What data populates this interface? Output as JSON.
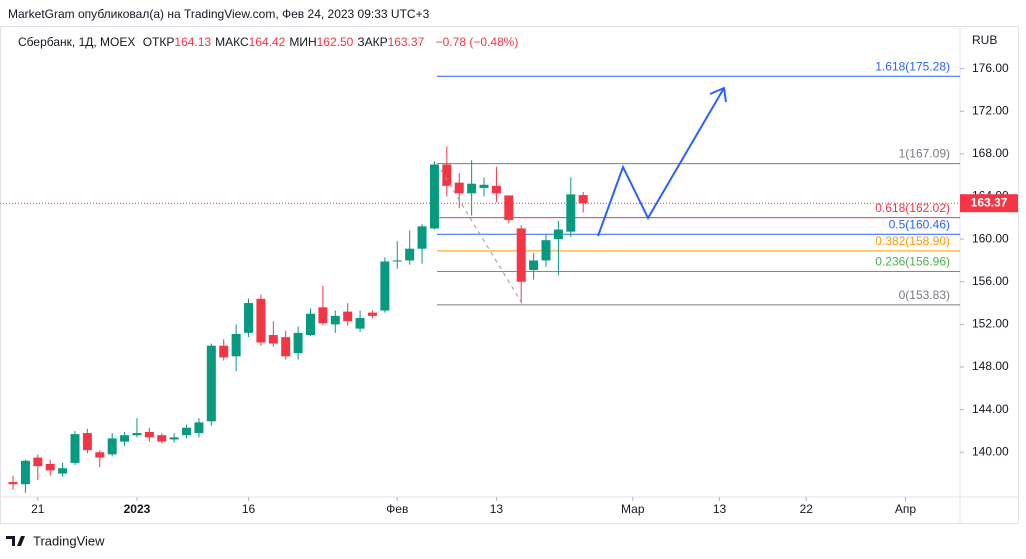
{
  "page": {
    "publisher": "MarketGram опубликовал(а) на TradingView.com, Фев 24, 2023 09:33 UTC+3",
    "symbol": "Сбербанк, 1Д, MOEX",
    "ohlc": [
      {
        "label": "ОТКР",
        "value": "164.13"
      },
      {
        "label": "МАКС",
        "value": "164.42"
      },
      {
        "label": "МИН",
        "value": "162.50"
      },
      {
        "label": "ЗАКР",
        "value": "163.37"
      }
    ],
    "change": "−0.78 (−0.48%)",
    "currency": "RUB",
    "brand": "TradingView"
  },
  "chart_data": {
    "type": "candlestick",
    "up_color": "#089981",
    "down_color": "#f23645",
    "open": [
      137.2,
      137.0,
      139.5,
      138.9,
      138.0,
      139.0,
      141.8,
      140.0,
      139.8,
      141.0,
      141.6,
      141.9,
      141.6,
      141.2,
      141.6,
      141.8,
      142.9,
      150.0,
      149.0,
      151.2,
      154.4,
      151.0,
      150.8,
      149.3,
      151.0,
      153.6,
      152.0,
      153.2,
      151.6,
      153.1,
      153.3,
      157.9,
      158.0,
      159.1,
      161.0,
      167.0,
      165.3,
      164.3,
      164.8,
      165.0,
      164.1,
      161.0,
      157.1,
      158.0,
      160.0,
      160.7,
      164.13
    ],
    "high": [
      137.8,
      139.3,
      139.8,
      139.3,
      139.0,
      142.0,
      142.2,
      140.2,
      141.8,
      141.9,
      143.2,
      142.3,
      141.8,
      141.8,
      142.6,
      143.2,
      150.2,
      150.6,
      152.0,
      154.4,
      154.8,
      152.3,
      151.4,
      151.8,
      153.5,
      155.6,
      153.3,
      154.0,
      153.3,
      153.3,
      158.3,
      159.8,
      160.8,
      161.4,
      167.3,
      168.7,
      166.2,
      167.4,
      165.8,
      166.8,
      164.1,
      161.3,
      158.7,
      160.4,
      161.7,
      165.8,
      164.42
    ],
    "low": [
      136.5,
      136.2,
      137.4,
      137.8,
      137.7,
      138.8,
      139.9,
      138.6,
      139.6,
      140.6,
      141.4,
      141.0,
      140.8,
      140.9,
      141.3,
      141.4,
      142.5,
      148.6,
      147.6,
      150.8,
      150.0,
      149.9,
      148.7,
      148.7,
      150.9,
      151.9,
      151.2,
      151.9,
      151.3,
      152.6,
      153.1,
      157.2,
      157.6,
      157.7,
      160.9,
      164.0,
      162.9,
      162.2,
      164.0,
      163.5,
      161.5,
      154.0,
      156.2,
      157.4,
      156.6,
      160.2,
      162.5
    ],
    "close": [
      137.0,
      139.2,
      138.7,
      138.3,
      138.5,
      141.7,
      140.2,
      139.5,
      141.3,
      141.6,
      141.8,
      141.4,
      141.0,
      141.4,
      142.3,
      142.8,
      150.0,
      148.9,
      151.1,
      154.0,
      150.3,
      150.2,
      149.0,
      151.2,
      153.0,
      152.1,
      152.8,
      152.3,
      152.6,
      152.8,
      157.9,
      158.0,
      159.1,
      161.2,
      167.0,
      165.0,
      164.3,
      165.2,
      165.1,
      164.3,
      161.8,
      156.0,
      158.0,
      159.9,
      160.9,
      164.2,
      163.37
    ],
    "last_price": 163.37,
    "xlim": [
      -1.05,
      76.4
    ],
    "xticks": [
      {
        "value": 2,
        "label": "21"
      },
      {
        "value": 10,
        "label": "2023"
      },
      {
        "value": 19,
        "label": "16"
      },
      {
        "value": 31,
        "label": "Фев"
      },
      {
        "value": 39,
        "label": "13"
      },
      {
        "value": 50,
        "label": "Мар"
      },
      {
        "value": 57,
        "label": "13"
      },
      {
        "value": 64,
        "label": "22"
      },
      {
        "value": 72,
        "label": "Апр"
      }
    ],
    "ylim": [
      135.8,
      180
    ],
    "yticks": [
      {
        "value": 140,
        "label": "140.00"
      },
      {
        "value": 144,
        "label": "144.00"
      },
      {
        "value": 148,
        "label": "148.00"
      },
      {
        "value": 152,
        "label": "152.00"
      },
      {
        "value": 156,
        "label": "156.00"
      },
      {
        "value": 160,
        "label": "160.00"
      },
      {
        "value": 164,
        "label": "164.00"
      },
      {
        "value": 168,
        "label": "168.00"
      },
      {
        "value": 172,
        "label": "172.00"
      },
      {
        "value": 176,
        "label": "176.00"
      }
    ],
    "fib_levels": [
      {
        "value": 175.28,
        "label": "1.618(175.28)",
        "color": "#2962ff"
      },
      {
        "value": 167.09,
        "label": "1(167.09)",
        "color": "#787b86"
      },
      {
        "value": 162.02,
        "label": "0.618(162.02)",
        "color": "#f23645"
      },
      {
        "value": 160.46,
        "label": "0.5(160.46)",
        "color": "#2962ff"
      },
      {
        "value": 158.9,
        "label": "0.382(158.90)",
        "color": "#ff9800"
      },
      {
        "value": 156.96,
        "label": "0.236(156.96)",
        "color": "#4caf50"
      },
      {
        "value": 153.83,
        "label": "0(153.83)",
        "color": "#787b86"
      }
    ]
  }
}
